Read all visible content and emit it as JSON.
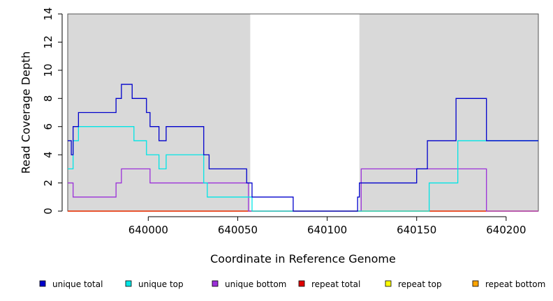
{
  "chart_data": {
    "type": "line",
    "title": "",
    "xlabel": "Coordinate in Reference Genome",
    "ylabel": "Read Coverage Depth",
    "xlim": [
      639955,
      640218
    ],
    "ylim": [
      0,
      14
    ],
    "x_ticks": [
      640000,
      640050,
      640100,
      640150,
      640200
    ],
    "x_tick_labels": [
      "640000",
      "640050",
      "640100",
      "640150",
      "640200"
    ],
    "y_ticks": [
      0,
      2,
      4,
      6,
      8,
      10,
      12,
      14
    ],
    "y_tick_labels": [
      "0",
      "2",
      "4",
      "6",
      "8",
      "10",
      "12",
      "14"
    ],
    "grid": false,
    "legend_position": "bottom",
    "shaded_regions": [
      {
        "x0": 639955,
        "x1": 640057,
        "color": "#d9d9d9"
      },
      {
        "x0": 640118,
        "x1": 640218,
        "color": "#d9d9d9"
      }
    ],
    "series": [
      {
        "name": "unique total",
        "color": "#0000cc",
        "points": [
          [
            639955,
            5
          ],
          [
            639957,
            5
          ],
          [
            639957,
            4
          ],
          [
            639958,
            4
          ],
          [
            639958,
            6
          ],
          [
            639961,
            6
          ],
          [
            639961,
            7
          ],
          [
            639982,
            7
          ],
          [
            639982,
            8
          ],
          [
            639985,
            8
          ],
          [
            639985,
            9
          ],
          [
            639991,
            9
          ],
          [
            639991,
            8
          ],
          [
            639999,
            8
          ],
          [
            639999,
            7
          ],
          [
            640001,
            7
          ],
          [
            640001,
            6
          ],
          [
            640006,
            6
          ],
          [
            640006,
            5
          ],
          [
            640010,
            5
          ],
          [
            640010,
            6
          ],
          [
            640031,
            6
          ],
          [
            640031,
            4
          ],
          [
            640034,
            4
          ],
          [
            640034,
            3
          ],
          [
            640055,
            3
          ],
          [
            640055,
            2
          ],
          [
            640058,
            2
          ],
          [
            640058,
            1
          ],
          [
            640081,
            1
          ],
          [
            640081,
            0
          ],
          [
            640117,
            0
          ],
          [
            640117,
            1
          ],
          [
            640118,
            1
          ],
          [
            640118,
            2
          ],
          [
            640150,
            2
          ],
          [
            640150,
            3
          ],
          [
            640156,
            3
          ],
          [
            640156,
            5
          ],
          [
            640172,
            5
          ],
          [
            640172,
            8
          ],
          [
            640189,
            8
          ],
          [
            640189,
            5
          ],
          [
            640218,
            5
          ]
        ]
      },
      {
        "name": "unique top",
        "color": "#00e5e5",
        "points": [
          [
            639955,
            3
          ],
          [
            639958,
            3
          ],
          [
            639958,
            5
          ],
          [
            639961,
            5
          ],
          [
            639961,
            6
          ],
          [
            639992,
            6
          ],
          [
            639992,
            5
          ],
          [
            639999,
            5
          ],
          [
            639999,
            4
          ],
          [
            640006,
            4
          ],
          [
            640006,
            3
          ],
          [
            640010,
            3
          ],
          [
            640010,
            4
          ],
          [
            640031,
            4
          ],
          [
            640031,
            2
          ],
          [
            640033,
            2
          ],
          [
            640033,
            1
          ],
          [
            640058,
            1
          ],
          [
            640058,
            0
          ],
          [
            640157,
            0
          ],
          [
            640157,
            2
          ],
          [
            640173,
            2
          ],
          [
            640173,
            5
          ],
          [
            640218,
            5
          ]
        ]
      },
      {
        "name": "unique bottom",
        "color": "#9b30d9",
        "points": [
          [
            639955,
            2
          ],
          [
            639958,
            2
          ],
          [
            639958,
            1
          ],
          [
            639982,
            1
          ],
          [
            639982,
            2
          ],
          [
            639985,
            2
          ],
          [
            639985,
            3
          ],
          [
            640001,
            3
          ],
          [
            640001,
            2
          ],
          [
            640056,
            2
          ],
          [
            640056,
            0
          ],
          [
            640119,
            0
          ],
          [
            640119,
            3
          ],
          [
            640189,
            3
          ],
          [
            640189,
            0
          ],
          [
            640218,
            0
          ]
        ]
      },
      {
        "name": "repeat total",
        "color": "#e00000",
        "points": [
          [
            639955,
            0
          ],
          [
            640218,
            0
          ]
        ]
      },
      {
        "name": "repeat top",
        "color": "#ffff00",
        "points": [
          [
            639955,
            0
          ],
          [
            640218,
            0
          ]
        ]
      },
      {
        "name": "repeat bottom",
        "color": "#ffa500",
        "points": [
          [
            639955,
            0
          ],
          [
            640218,
            0
          ]
        ]
      }
    ]
  }
}
